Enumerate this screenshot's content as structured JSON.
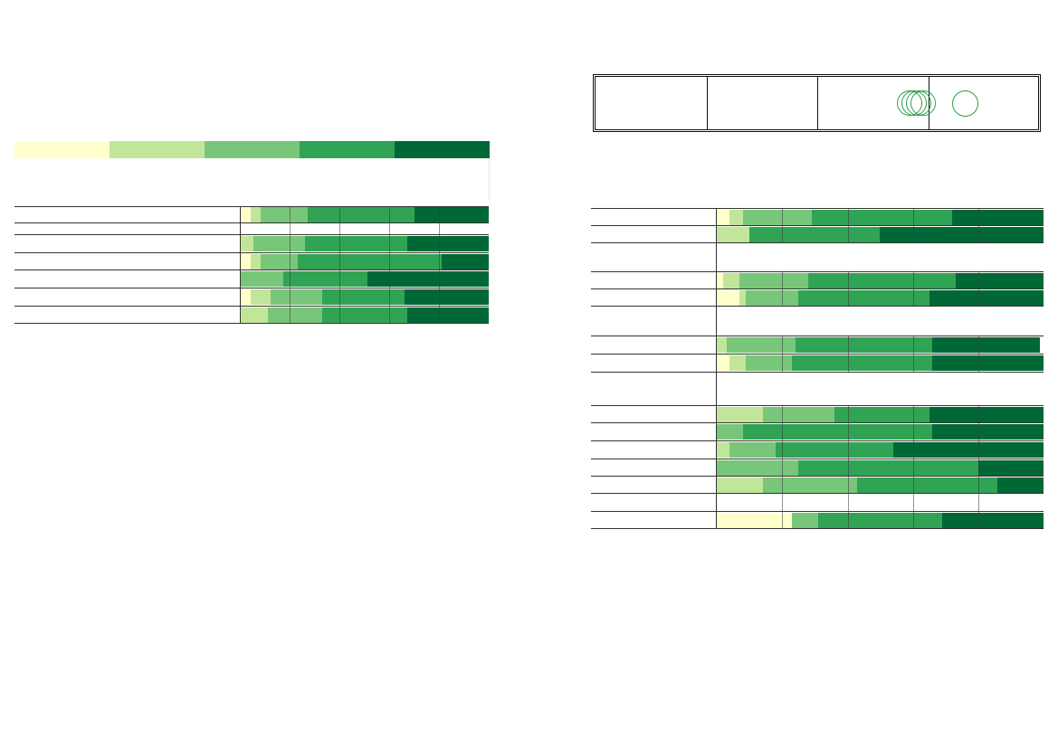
{
  "colors": {
    "scale": [
      "#ffffcc",
      "#c2e699",
      "#78c679",
      "#31a354",
      "#006837"
    ],
    "line": "#333333",
    "circle": "#2e9e4b"
  },
  "legend": {
    "labels": [
      "",
      "",
      "",
      "",
      ""
    ]
  },
  "header_table": {
    "cells": [
      "",
      "",
      "",
      ""
    ]
  },
  "chart_data": [
    {
      "type": "bar",
      "stacked": true,
      "orientation": "horizontal",
      "title": "",
      "xlim": [
        0,
        100
      ],
      "categories": [
        "",
        "",
        "",
        "",
        "",
        ""
      ],
      "series": [
        {
          "values": [
            4,
            0,
            4,
            0,
            4,
            0
          ]
        },
        {
          "values": [
            4,
            5,
            4,
            0,
            8,
            11
          ]
        },
        {
          "values": [
            19,
            21,
            15,
            17,
            21,
            22
          ]
        },
        {
          "values": [
            43,
            41,
            58,
            34,
            33,
            34
          ]
        },
        {
          "values": [
            30,
            33,
            19,
            49,
            34,
            33
          ]
        }
      ]
    },
    {
      "type": "bar",
      "stacked": true,
      "orientation": "horizontal",
      "title": "",
      "xlim": [
        0,
        100
      ],
      "categories": [
        "",
        "",
        "",
        "",
        "",
        "",
        "",
        "",
        "",
        "",
        "",
        "",
        ""
      ],
      "series": [
        {
          "values": [
            4,
            0,
            2,
            7,
            0,
            4,
            0,
            0,
            0,
            0,
            0,
            0,
            23
          ]
        },
        {
          "values": [
            4,
            10,
            5,
            2,
            3,
            5,
            14,
            0,
            4,
            0,
            14,
            0,
            0
          ]
        },
        {
          "values": [
            21,
            0,
            21,
            16,
            21,
            14,
            22,
            8,
            14,
            25,
            29,
            0,
            8
          ]
        },
        {
          "values": [
            43,
            40,
            45,
            40,
            42,
            43,
            29,
            58,
            36,
            55,
            43,
            0,
            38
          ]
        },
        {
          "values": [
            28,
            50,
            27,
            35,
            33,
            34,
            35,
            34,
            46,
            20,
            14,
            0,
            31
          ]
        }
      ]
    }
  ]
}
